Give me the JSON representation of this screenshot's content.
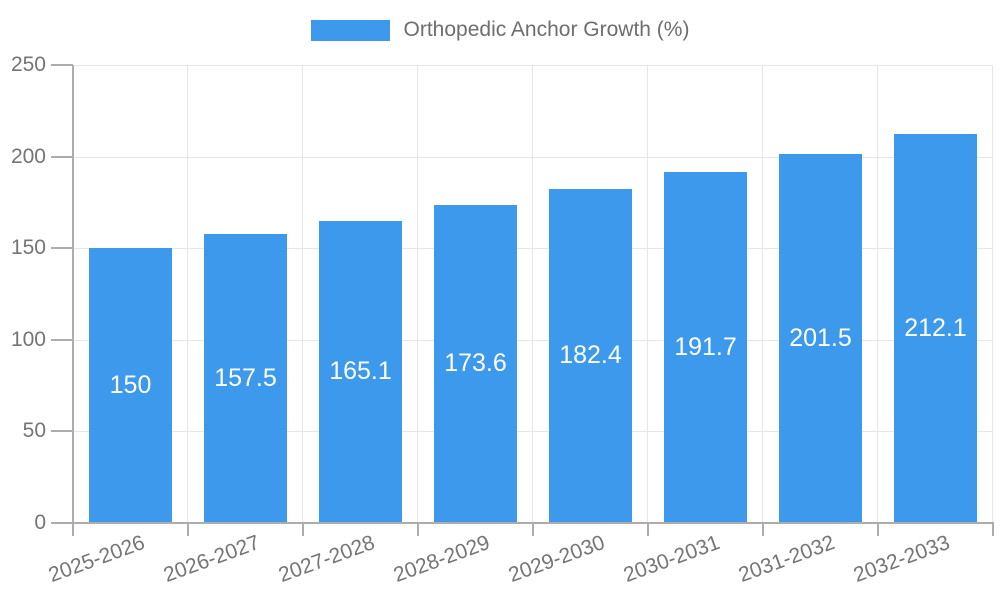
{
  "legend": {
    "label": "Orthopedic Anchor Growth (%)"
  },
  "chart_data": {
    "type": "bar",
    "title": "",
    "xlabel": "",
    "ylabel": "",
    "categories": [
      "2025-2026",
      "2026-2027",
      "2027-2028",
      "2028-2029",
      "2029-2030",
      "2030-2031",
      "2031-2032",
      "2032-2033"
    ],
    "values": [
      150,
      157.5,
      165.1,
      173.6,
      182.4,
      191.7,
      201.5,
      212.1
    ],
    "value_labels": [
      "150",
      "157.5",
      "165.1",
      "173.6",
      "182.4",
      "191.7",
      "201.5",
      "212.1"
    ],
    "series_name": "Orthopedic Anchor Growth (%)",
    "ylim": [
      0,
      250
    ],
    "yticks": [
      0,
      50,
      100,
      150,
      200,
      250
    ],
    "grid": true,
    "legend_position": "top",
    "x_label_rotation_deg": -20,
    "value_labels_inside_bars": true
  },
  "colors": {
    "bar": "#3c99eb",
    "grid": "#e6e6e6",
    "axis": "#adadad",
    "tick_text": "#757575",
    "legend_text": "#6e6e6e",
    "bar_label": "#ffffff",
    "background": "#ffffff"
  }
}
